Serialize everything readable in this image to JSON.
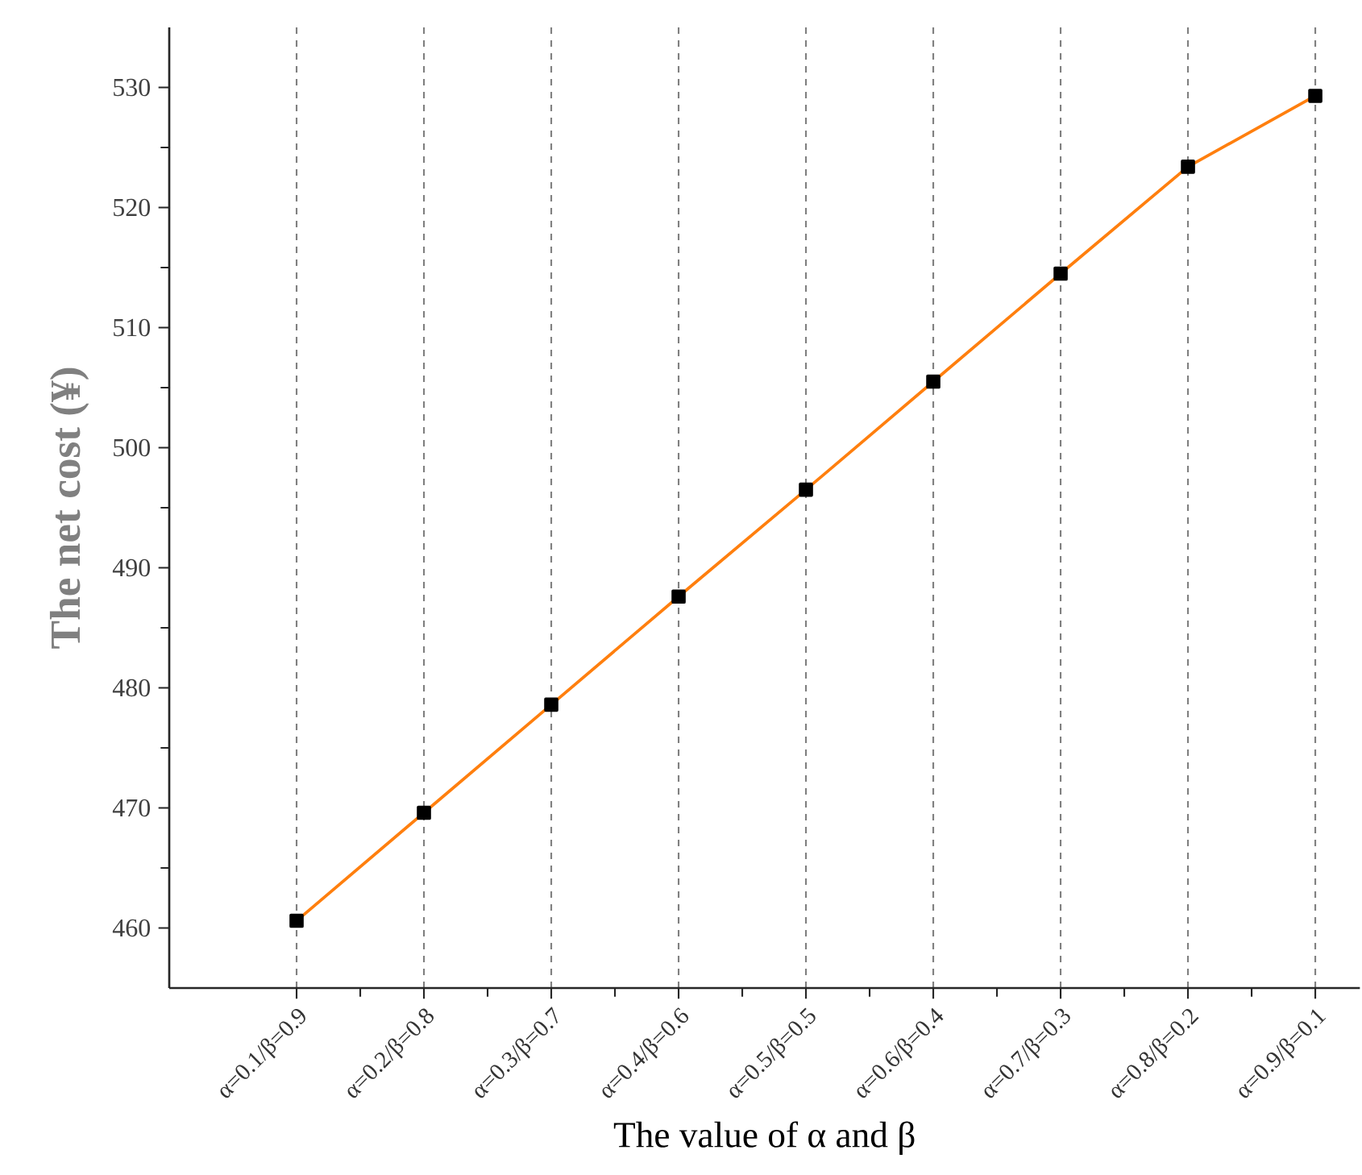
{
  "chart_data": {
    "type": "line",
    "xlabel": "The value of α and β",
    "ylabel": "The net cost (¥)",
    "categories": [
      "α=0.1/β=0.9",
      "α=0.2/β=0.8",
      "α=0.3/β=0.7",
      "α=0.4/β=0.6",
      "α=0.5/β=0.5",
      "α=0.6/β=0.4",
      "α=0.7/β=0.3",
      "α=0.8/β=0.2",
      "α=0.9/β=0.1"
    ],
    "series": [
      {
        "color": "#ff7f0e",
        "values": [
          460.6,
          469.6,
          478.6,
          487.6,
          496.5,
          505.5,
          514.5,
          523.4,
          529.3
        ]
      }
    ],
    "ylim": [
      455,
      535
    ],
    "yticks": [
      460,
      470,
      480,
      490,
      500,
      510,
      520,
      530
    ],
    "grid": "x",
    "marker": "square",
    "line_style": "solid"
  }
}
